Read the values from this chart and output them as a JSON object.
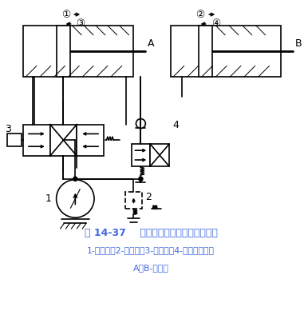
{
  "title_line1": "图 14-37    用行程阀控制的顺序动作回路",
  "title_line2": "1-液压泵；2-溢流阀；3-换向阀；4-行程换向阀；",
  "title_line3": "A、B-液压缸",
  "title_color": "#4169E1",
  "bg_color": "#ffffff",
  "line_color": "#000000"
}
